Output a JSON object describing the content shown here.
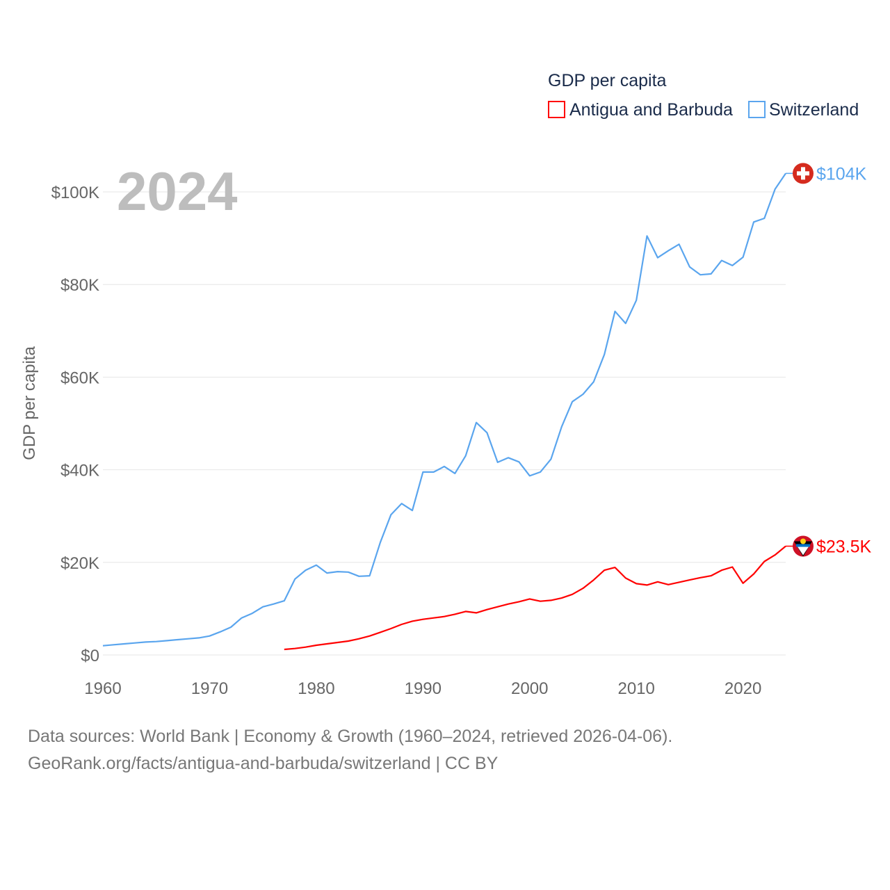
{
  "chart_data": {
    "type": "line",
    "title": "GDP per capita",
    "ylabel": "GDP per capita",
    "xlabel": "",
    "year_overlay": "2024",
    "xlim": [
      1960,
      2024
    ],
    "ylim": [
      0,
      100000
    ],
    "x_ticks": [
      1960,
      1970,
      1980,
      1990,
      2000,
      2010,
      2020
    ],
    "y_ticks": [
      0,
      20000,
      40000,
      60000,
      80000,
      100000
    ],
    "y_tick_labels": [
      "$0",
      "$20K",
      "$40K",
      "$60K",
      "$80K",
      "$100K"
    ],
    "grid": true,
    "legend_position": "top-right",
    "series": [
      {
        "name": "Antigua and Barbuda",
        "color": "#ff0000",
        "end_label": "$23.5K",
        "flag_icon": "antigua-flag-icon",
        "start_year": 1977,
        "values": [
          1.2,
          1.4,
          1.7,
          2.1,
          2.4,
          2.7,
          3.0,
          3.5,
          4.1,
          4.9,
          5.7,
          6.6,
          7.3,
          7.7,
          8.0,
          8.3,
          8.8,
          9.4,
          9.1,
          9.8,
          10.4,
          11.0,
          11.5,
          12.1,
          11.6,
          11.8,
          12.3,
          13.1,
          14.4,
          16.2,
          18.3,
          18.9,
          16.6,
          15.4,
          15.1,
          15.8,
          15.2,
          15.7,
          16.2,
          16.7,
          17.1,
          18.3,
          19.0,
          15.5,
          17.5,
          20.2,
          21.6,
          23.5
        ]
      },
      {
        "name": "Switzerland",
        "color": "#5aa5ee",
        "end_label": "$104K",
        "flag_icon": "switzerland-flag-icon",
        "start_year": 1960,
        "values": [
          2.0,
          2.2,
          2.4,
          2.6,
          2.8,
          2.9,
          3.1,
          3.3,
          3.5,
          3.7,
          4.1,
          5.0,
          6.0,
          8.0,
          9.0,
          10.4,
          11.0,
          11.7,
          16.4,
          18.3,
          19.4,
          17.7,
          18.0,
          17.9,
          17.0,
          17.1,
          24.3,
          30.3,
          32.7,
          31.2,
          39.5,
          39.5,
          40.7,
          39.2,
          43.0,
          50.2,
          48.0,
          41.6,
          42.6,
          41.7,
          38.7,
          39.5,
          42.3,
          49.3,
          54.7,
          56.3,
          59.0,
          64.9,
          74.2,
          71.6,
          76.6,
          90.5,
          85.8,
          87.3,
          88.7,
          83.8,
          82.1,
          82.3,
          85.2,
          84.1,
          85.9,
          93.5,
          94.3,
          100.6,
          104.0
        ]
      }
    ],
    "value_unit": "thousand USD"
  },
  "footer": {
    "line1": "Data sources: World Bank | Economy & Growth (1960–2024, retrieved 2026-04-06).",
    "line2": "GeoRank.org/facts/antigua-and-barbuda/switzerland | CC BY"
  }
}
